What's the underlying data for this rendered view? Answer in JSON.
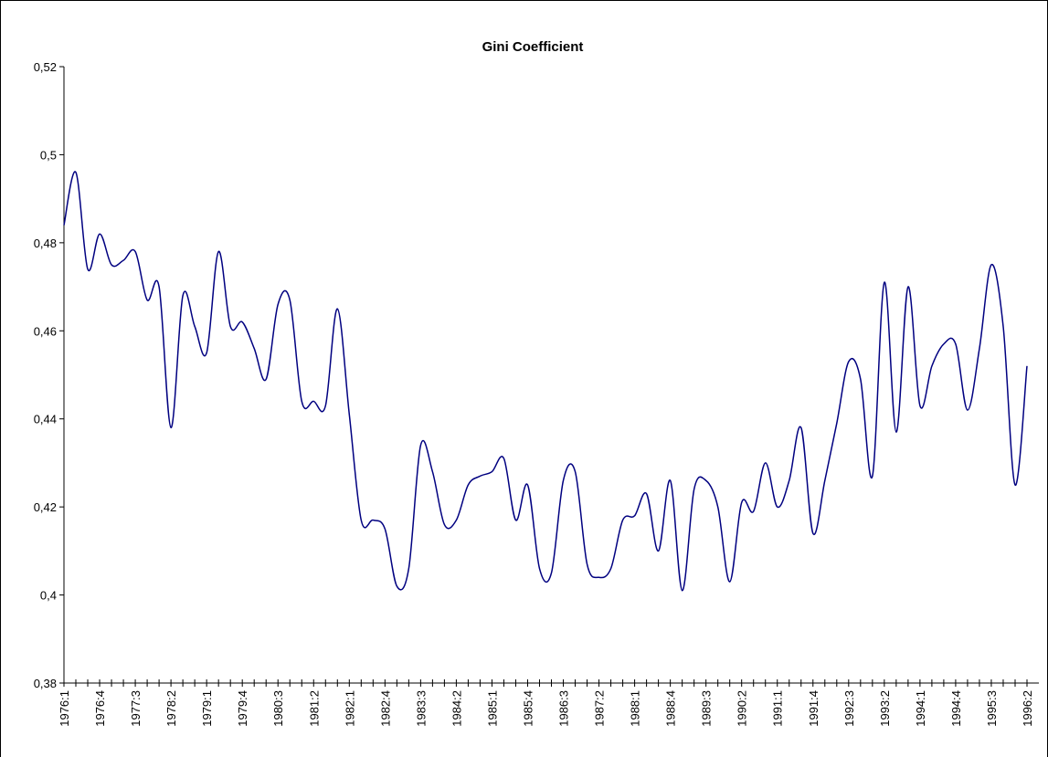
{
  "chart_data": {
    "type": "line",
    "title": "Gini Coefficient",
    "categories": [
      "1976:1",
      null,
      null,
      "1976:4",
      null,
      null,
      "1977:3",
      null,
      null,
      "1978:2",
      null,
      null,
      "1979:1",
      null,
      null,
      "1979:4",
      null,
      null,
      "1980:3",
      null,
      null,
      "1981:2",
      null,
      null,
      "1982:1",
      null,
      null,
      "1982:4",
      null,
      null,
      "1983:3",
      null,
      null,
      "1984:2",
      null,
      null,
      "1985:1",
      null,
      null,
      "1985:4",
      null,
      null,
      "1986:3",
      null,
      null,
      "1987:2",
      null,
      null,
      "1988:1",
      null,
      null,
      "1988:4",
      null,
      null,
      "1989:3",
      null,
      null,
      "1990:2",
      null,
      null,
      "1991:1",
      null,
      null,
      "1991:4",
      null,
      null,
      "1992:3",
      null,
      null,
      "1993:2",
      null,
      null,
      "1994:1",
      null,
      null,
      "1994:4",
      null,
      null,
      "1995:3",
      null,
      null,
      "1996:2"
    ],
    "series": [
      {
        "color": "#000080",
        "values": [
          0.484,
          0.496,
          0.474,
          0.482,
          0.475,
          0.476,
          0.478,
          0.467,
          0.47,
          0.438,
          0.468,
          0.461,
          0.455,
          0.478,
          0.461,
          0.462,
          0.456,
          0.449,
          0.466,
          0.467,
          0.444,
          0.444,
          0.443,
          0.465,
          0.441,
          0.417,
          0.417,
          0.415,
          0.402,
          0.406,
          0.434,
          0.428,
          0.416,
          0.417,
          0.425,
          0.427,
          0.428,
          0.431,
          0.417,
          0.425,
          0.406,
          0.405,
          0.426,
          0.428,
          0.407,
          0.404,
          0.406,
          0.417,
          0.418,
          0.423,
          0.41,
          0.426,
          0.401,
          0.424,
          0.426,
          0.42,
          0.403,
          0.421,
          0.419,
          0.43,
          0.42,
          0.426,
          0.438,
          0.414,
          0.426,
          0.439,
          0.453,
          0.449,
          0.427,
          0.471,
          0.437,
          0.47,
          0.443,
          0.452,
          0.457,
          0.457,
          0.442,
          0.456,
          0.475,
          0.461,
          0.425,
          0.452
        ]
      }
    ],
    "ylim": [
      0.38,
      0.52
    ],
    "yticks": [
      {
        "value": 0.38,
        "label": "0,38"
      },
      {
        "value": 0.4,
        "label": "0,4"
      },
      {
        "value": 0.42,
        "label": "0,42"
      },
      {
        "value": 0.44,
        "label": "0,44"
      },
      {
        "value": 0.46,
        "label": "0,46"
      },
      {
        "value": 0.48,
        "label": "0,48"
      },
      {
        "value": 0.5,
        "label": "0,5"
      },
      {
        "value": 0.52,
        "label": "0,52"
      }
    ],
    "smooth": true
  }
}
